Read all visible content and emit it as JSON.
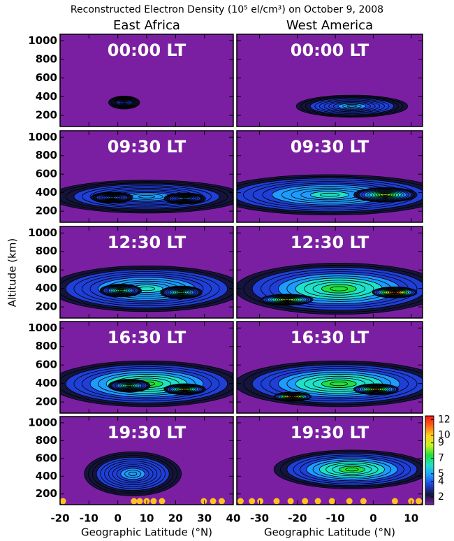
{
  "title": "Reconstructed Electron Density (10⁵ el/cm³) on October 9, 2008",
  "column_titles": [
    "East Africa",
    "West America"
  ],
  "y_label": "Altitude (km)",
  "colorbar": {
    "lim": [
      1,
      12.5
    ],
    "ticks": [
      2,
      4,
      5,
      7,
      9,
      10,
      12
    ],
    "colors": [
      "#7b1fa2",
      "#14143c",
      "#1f3fd6",
      "#1e9bff",
      "#1fe0c8",
      "#1fe03c",
      "#c8f51e",
      "#ffd21e",
      "#ff6414",
      "#f01414"
    ]
  },
  "chart_data": [
    {
      "type": "contour",
      "title": "00:00 LT",
      "xlim": [
        -20,
        40
      ],
      "xticks": [
        -20,
        -10,
        0,
        10,
        20,
        30,
        40
      ],
      "ylim": [
        80,
        1070
      ],
      "yticks": [
        200,
        400,
        600,
        800,
        1000
      ]
    },
    {
      "type": "contour",
      "title": "00:00 LT",
      "xlim": [
        -36,
        13
      ],
      "xticks": [
        -30,
        -20,
        -10,
        0,
        10
      ],
      "ylim": [
        80,
        1070
      ],
      "yticks": [
        200,
        400,
        600,
        800,
        1000
      ]
    },
    {
      "type": "contour",
      "title": "09:30 LT",
      "xlim": [
        -20,
        40
      ],
      "xticks": [
        -20,
        -10,
        0,
        10,
        20,
        30,
        40
      ],
      "ylim": [
        80,
        1070
      ],
      "yticks": [
        200,
        400,
        600,
        800,
        1000
      ]
    },
    {
      "type": "contour",
      "title": "09:30 LT",
      "xlim": [
        -36,
        13
      ],
      "xticks": [
        -30,
        -20,
        -10,
        0,
        10
      ],
      "ylim": [
        80,
        1070
      ],
      "yticks": [
        200,
        400,
        600,
        800,
        1000
      ]
    },
    {
      "type": "contour",
      "title": "12:30 LT",
      "xlim": [
        -20,
        40
      ],
      "xticks": [
        -20,
        -10,
        0,
        10,
        20,
        30,
        40
      ],
      "ylim": [
        80,
        1070
      ],
      "yticks": [
        200,
        400,
        600,
        800,
        1000
      ]
    },
    {
      "type": "contour",
      "title": "12:30 LT",
      "xlim": [
        -36,
        13
      ],
      "xticks": [
        -30,
        -20,
        -10,
        0,
        10
      ],
      "ylim": [
        80,
        1070
      ],
      "yticks": [
        200,
        400,
        600,
        800,
        1000
      ]
    },
    {
      "type": "contour",
      "title": "16:30 LT",
      "xlim": [
        -20,
        40
      ],
      "xticks": [
        -20,
        -10,
        0,
        10,
        20,
        30,
        40
      ],
      "ylim": [
        80,
        1070
      ],
      "yticks": [
        200,
        400,
        600,
        800,
        1000
      ]
    },
    {
      "type": "contour",
      "title": "16:30 LT",
      "xlim": [
        -36,
        13
      ],
      "xticks": [
        -30,
        -20,
        -10,
        0,
        10
      ],
      "ylim": [
        80,
        1070
      ],
      "yticks": [
        200,
        400,
        600,
        800,
        1000
      ]
    },
    {
      "type": "contour",
      "title": "19:30 LT",
      "xlim": [
        -20,
        40
      ],
      "xticks": [
        -20,
        -10,
        0,
        10,
        20,
        30,
        40
      ],
      "ylim": [
        80,
        1070
      ],
      "yticks": [
        200,
        400,
        600,
        800,
        1000
      ],
      "x_label": "Geographic Latitude (°N)",
      "markers_x": [
        -19,
        5.6,
        7.6,
        10,
        12.4,
        15.3,
        29.8,
        33,
        36
      ]
    },
    {
      "type": "contour",
      "title": "19:30 LT",
      "xlim": [
        -36,
        13
      ],
      "xticks": [
        -30,
        -20,
        -10,
        0,
        10
      ],
      "ylim": [
        80,
        1070
      ],
      "yticks": [
        200,
        400,
        600,
        800,
        1000
      ],
      "x_label": "Geographic Latitude (°N)",
      "markers_x": [
        -35,
        -32,
        -29.8,
        -25.5,
        -21.8,
        -18,
        -14.6,
        -10.9,
        -6.3,
        -2.6,
        5.7,
        10,
        12
      ]
    }
  ]
}
